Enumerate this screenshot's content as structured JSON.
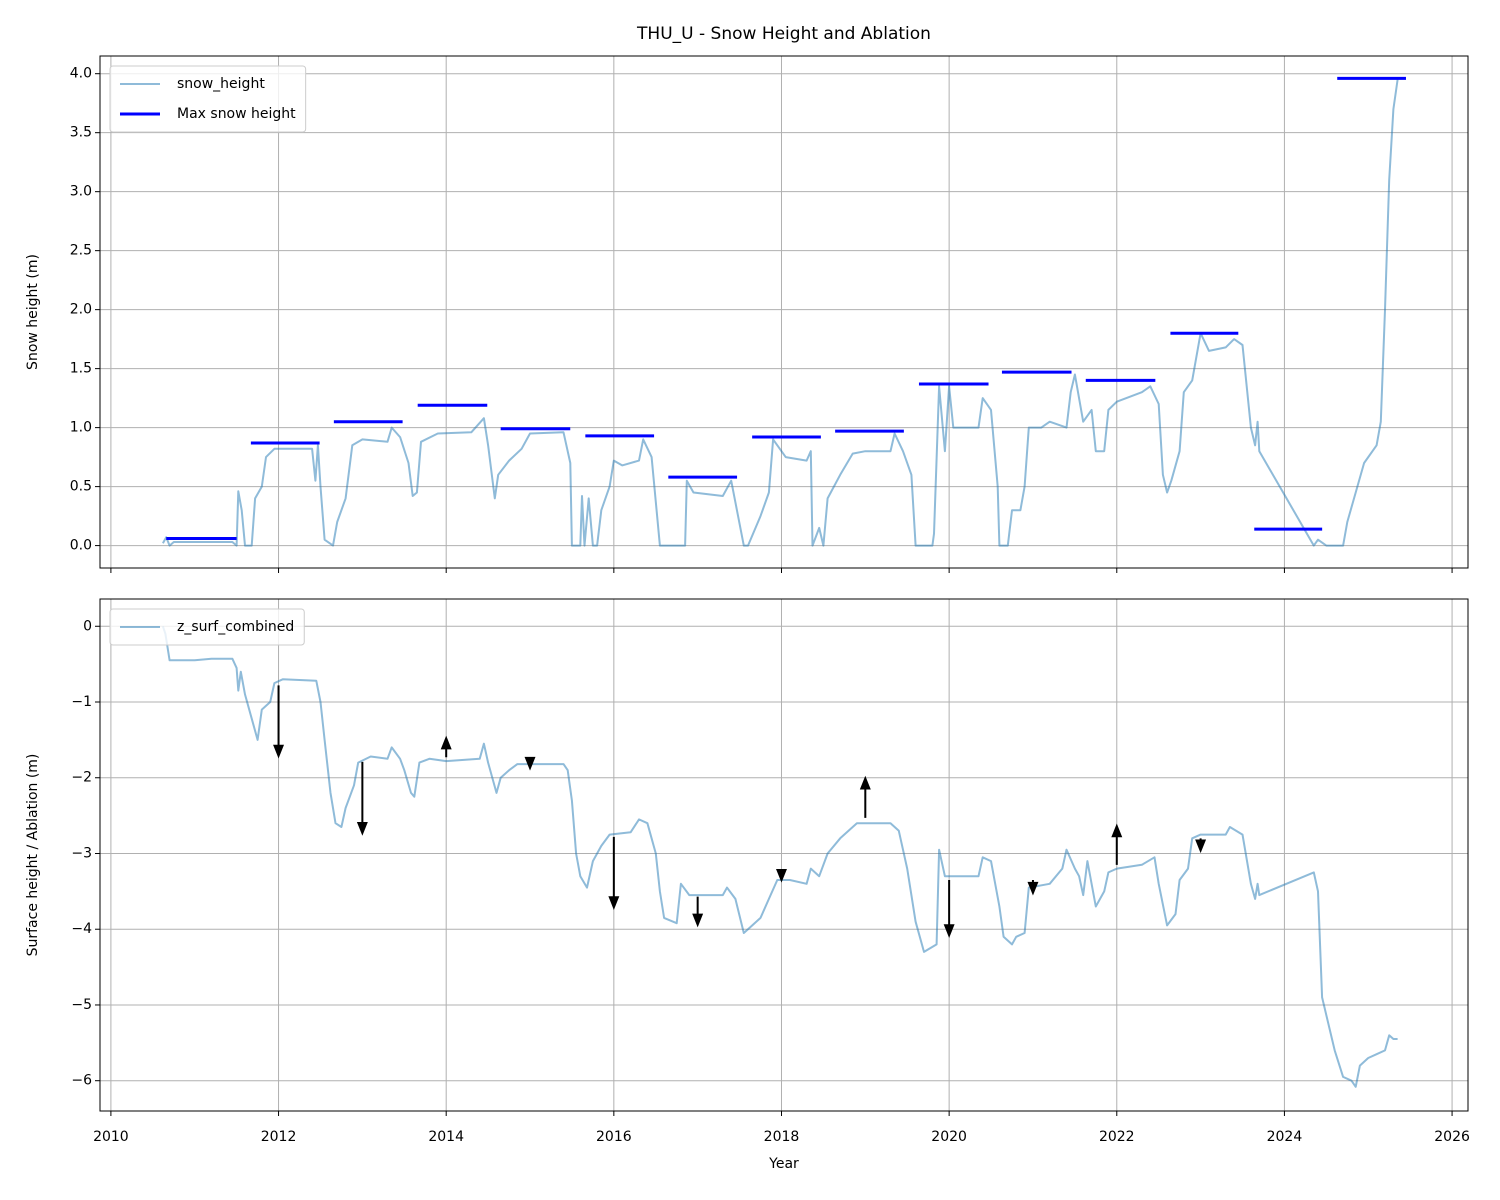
{
  "chart_data": [
    {
      "type": "line",
      "title": "THU_U - Snow Height and Ablation",
      "ylabel": "Snow height (m)",
      "xlim": [
        2009.87,
        2026.19
      ],
      "ylim": [
        -0.19,
        4.15
      ],
      "xticks": [
        2010,
        2012,
        2014,
        2016,
        2018,
        2020,
        2022,
        2024,
        2026
      ],
      "show_xtick_labels": false,
      "yticks": [
        {
          "value": 0,
          "label": "0.0"
        },
        0.5,
        {
          "value": 1,
          "label": "1.0"
        },
        1.5,
        {
          "value": 2,
          "label": "2.0"
        },
        2.5,
        {
          "value": 3,
          "label": "3.0"
        },
        3.5,
        {
          "value": 4,
          "label": "4.0"
        }
      ],
      "grid": true,
      "legend": "upper left",
      "series": [
        {
          "name": "snow_height",
          "color": "#1f77b4",
          "alpha": 0.5,
          "x": [
            2010.62,
            2010.66,
            2010.7,
            2010.75,
            2011.45,
            2011.5,
            2011.52,
            2011.56,
            2011.6,
            2011.68,
            2011.72,
            2011.8,
            2011.85,
            2011.95,
            2012.4,
            2012.44,
            2012.47,
            2012.5,
            2012.55,
            2012.65,
            2012.7,
            2012.8,
            2012.88,
            2013.0,
            2013.3,
            2013.35,
            2013.45,
            2013.55,
            2013.6,
            2013.65,
            2013.7,
            2013.9,
            2014.3,
            2014.45,
            2014.5,
            2014.58,
            2014.62,
            2014.75,
            2014.9,
            2015.0,
            2015.4,
            2015.48,
            2015.5,
            2015.6,
            2015.62,
            2015.65,
            2015.7,
            2015.75,
            2015.8,
            2015.85,
            2015.95,
            2016.0,
            2016.1,
            2016.3,
            2016.35,
            2016.45,
            2016.55,
            2016.85,
            2016.87,
            2016.95,
            2017.3,
            2017.4,
            2017.55,
            2017.6,
            2017.75,
            2017.85,
            2017.9,
            2018.05,
            2018.3,
            2018.35,
            2018.37,
            2018.45,
            2018.5,
            2018.55,
            2018.7,
            2018.85,
            2019.0,
            2019.3,
            2019.35,
            2019.45,
            2019.55,
            2019.6,
            2019.8,
            2019.82,
            2019.88,
            2019.95,
            2020.0,
            2020.05,
            2020.35,
            2020.4,
            2020.5,
            2020.58,
            2020.6,
            2020.7,
            2020.75,
            2020.85,
            2020.9,
            2020.95,
            2021.1,
            2021.2,
            2021.4,
            2021.45,
            2021.5,
            2021.6,
            2021.7,
            2021.75,
            2021.85,
            2021.9,
            2022.0,
            2022.3,
            2022.4,
            2022.5,
            2022.55,
            2022.6,
            2022.65,
            2022.75,
            2022.8,
            2022.9,
            2022.95,
            2023.0,
            2023.1,
            2023.3,
            2023.4,
            2023.5,
            2023.6,
            2023.65,
            2023.68,
            2023.7,
            2024.35,
            2024.4,
            2024.5,
            2024.7,
            2024.75,
            2024.85,
            2024.95,
            2025.1,
            2025.15,
            2025.2,
            2025.25,
            2025.3,
            2025.35
          ],
          "values": [
            0.02,
            0.07,
            0.0,
            0.03,
            0.03,
            0.0,
            0.46,
            0.3,
            0.0,
            0.0,
            0.4,
            0.5,
            0.75,
            0.82,
            0.82,
            0.55,
            0.85,
            0.5,
            0.05,
            0.0,
            0.2,
            0.4,
            0.85,
            0.9,
            0.88,
            1.0,
            0.92,
            0.7,
            0.42,
            0.45,
            0.88,
            0.95,
            0.96,
            1.08,
            0.85,
            0.4,
            0.6,
            0.72,
            0.82,
            0.95,
            0.96,
            0.7,
            0.0,
            0.0,
            0.42,
            0.0,
            0.4,
            0.0,
            0.0,
            0.3,
            0.5,
            0.72,
            0.68,
            0.72,
            0.9,
            0.75,
            0.0,
            0.0,
            0.55,
            0.45,
            0.42,
            0.55,
            0.0,
            0.0,
            0.25,
            0.45,
            0.9,
            0.75,
            0.72,
            0.8,
            0.0,
            0.15,
            0.0,
            0.4,
            0.6,
            0.78,
            0.8,
            0.8,
            0.95,
            0.8,
            0.6,
            0.0,
            0.0,
            0.1,
            1.35,
            0.8,
            1.35,
            1.0,
            1.0,
            1.25,
            1.15,
            0.5,
            0.0,
            0.0,
            0.3,
            0.3,
            0.5,
            1.0,
            1.0,
            1.05,
            1.0,
            1.3,
            1.45,
            1.05,
            1.15,
            0.8,
            0.8,
            1.15,
            1.22,
            1.3,
            1.35,
            1.2,
            0.6,
            0.45,
            0.55,
            0.8,
            1.3,
            1.4,
            1.6,
            1.8,
            1.65,
            1.68,
            1.75,
            1.7,
            1.0,
            0.85,
            1.05,
            0.8,
            0.0,
            0.05,
            0.0,
            0.0,
            0.2,
            0.45,
            0.7,
            0.85,
            1.05,
            2.0,
            3.1,
            3.7,
            3.95
          ]
        },
        {
          "name": "Max snow height",
          "color": "#0000ff",
          "x_start": [
            2010.66,
            2011.67,
            2012.66,
            2013.66,
            2014.65,
            2015.66,
            2016.65,
            2017.65,
            2018.64,
            2019.64,
            2020.63,
            2021.63,
            2022.64,
            2023.64,
            2024.63
          ],
          "x_end": [
            2011.5,
            2012.49,
            2013.48,
            2014.49,
            2015.48,
            2016.48,
            2017.47,
            2018.47,
            2019.46,
            2020.47,
            2021.46,
            2022.46,
            2023.45,
            2024.45,
            2025.45
          ],
          "values": [
            0.06,
            0.87,
            1.05,
            1.19,
            0.99,
            0.93,
            0.58,
            0.92,
            0.97,
            1.37,
            1.47,
            1.4,
            1.8,
            0.14,
            3.96
          ]
        }
      ]
    },
    {
      "type": "line",
      "ylabel": "Surface height / Ablation (m)",
      "xlabel": "Year",
      "xlim": [
        2009.87,
        2026.19
      ],
      "ylim": [
        -6.4,
        0.36
      ],
      "xticks": [
        2010,
        2012,
        2014,
        2016,
        2018,
        2020,
        2022,
        2024,
        2026
      ],
      "show_xtick_labels": true,
      "yticks": [
        0,
        {
          "value": -1,
          "label": "−1"
        },
        {
          "value": -2,
          "label": "−2"
        },
        {
          "value": -3,
          "label": "−3"
        },
        {
          "value": -4,
          "label": "−4"
        },
        {
          "value": -5,
          "label": "−5"
        },
        {
          "value": -6,
          "label": "−6"
        }
      ],
      "grid": true,
      "legend": "upper left",
      "series": [
        {
          "name": "z_surf_combined",
          "color": "#1f77b4",
          "alpha": 0.5,
          "x": [
            2010.62,
            2010.65,
            2010.7,
            2011.0,
            2011.2,
            2011.45,
            2011.5,
            2011.52,
            2011.55,
            2011.6,
            2011.7,
            2011.75,
            2011.8,
            2011.9,
            2011.95,
            2012.05,
            2012.45,
            2012.5,
            2012.55,
            2012.62,
            2012.68,
            2012.75,
            2012.8,
            2012.9,
            2012.95,
            2013.1,
            2013.3,
            2013.35,
            2013.45,
            2013.5,
            2013.58,
            2013.62,
            2013.68,
            2013.8,
            2014.0,
            2014.4,
            2014.45,
            2014.5,
            2014.6,
            2014.65,
            2014.75,
            2014.85,
            2015.0,
            2015.4,
            2015.45,
            2015.5,
            2015.55,
            2015.6,
            2015.68,
            2015.75,
            2015.85,
            2015.95,
            2016.2,
            2016.3,
            2016.4,
            2016.5,
            2016.55,
            2016.6,
            2016.75,
            2016.8,
            2016.9,
            2017.3,
            2017.35,
            2017.45,
            2017.55,
            2017.6,
            2017.75,
            2017.85,
            2017.95,
            2018.1,
            2018.3,
            2018.35,
            2018.45,
            2018.55,
            2018.7,
            2018.85,
            2018.9,
            2019.3,
            2019.4,
            2019.5,
            2019.6,
            2019.7,
            2019.85,
            2019.88,
            2019.95,
            2020.35,
            2020.4,
            2020.5,
            2020.6,
            2020.65,
            2020.75,
            2020.8,
            2020.9,
            2020.95,
            2021.2,
            2021.35,
            2021.4,
            2021.5,
            2021.55,
            2021.6,
            2021.65,
            2021.75,
            2021.85,
            2021.9,
            2022.0,
            2022.3,
            2022.45,
            2022.5,
            2022.6,
            2022.7,
            2022.75,
            2022.85,
            2022.9,
            2023.0,
            2023.3,
            2023.35,
            2023.5,
            2023.6,
            2023.65,
            2023.68,
            2023.7,
            2024.35,
            2024.4,
            2024.45,
            2024.6,
            2024.7,
            2024.8,
            2024.85,
            2024.9,
            2025.0,
            2025.1,
            2025.2,
            2025.25,
            2025.3,
            2025.35
          ],
          "values": [
            0,
            -0.1,
            -0.45,
            -0.45,
            -0.43,
            -0.43,
            -0.55,
            -0.85,
            -0.6,
            -0.9,
            -1.3,
            -1.5,
            -1.1,
            -1.0,
            -0.75,
            -0.7,
            -0.72,
            -1.0,
            -1.5,
            -2.2,
            -2.6,
            -2.65,
            -2.4,
            -2.1,
            -1.8,
            -1.72,
            -1.75,
            -1.6,
            -1.75,
            -1.9,
            -2.2,
            -2.25,
            -1.8,
            -1.75,
            -1.78,
            -1.75,
            -1.55,
            -1.8,
            -2.2,
            -2.0,
            -1.9,
            -1.82,
            -1.82,
            -1.82,
            -1.9,
            -2.3,
            -3.0,
            -3.3,
            -3.45,
            -3.1,
            -2.9,
            -2.75,
            -2.72,
            -2.55,
            -2.6,
            -3.0,
            -3.5,
            -3.85,
            -3.92,
            -3.4,
            -3.55,
            -3.55,
            -3.45,
            -3.6,
            -4.05,
            -4.0,
            -3.85,
            -3.6,
            -3.35,
            -3.35,
            -3.4,
            -3.2,
            -3.3,
            -3.0,
            -2.8,
            -2.65,
            -2.6,
            -2.6,
            -2.7,
            -3.2,
            -3.9,
            -4.3,
            -4.2,
            -2.95,
            -3.3,
            -3.3,
            -3.05,
            -3.1,
            -3.7,
            -4.1,
            -4.2,
            -4.1,
            -4.05,
            -3.45,
            -3.4,
            -3.2,
            -2.95,
            -3.2,
            -3.3,
            -3.55,
            -3.1,
            -3.7,
            -3.5,
            -3.25,
            -3.2,
            -3.15,
            -3.05,
            -3.4,
            -3.95,
            -3.8,
            -3.35,
            -3.2,
            -2.8,
            -2.75,
            -2.75,
            -2.65,
            -2.75,
            -3.4,
            -3.6,
            -3.4,
            -3.55,
            -3.25,
            -3.5,
            -4.9,
            -5.6,
            -5.95,
            -6.0,
            -6.08,
            -5.8,
            -5.7,
            -5.65,
            -5.6,
            -5.4,
            -5.45,
            -5.45
          ]
        }
      ],
      "arrows": {
        "color": "#000000",
        "x": [
          2012,
          2013,
          2014,
          2015,
          2016,
          2017,
          2018,
          2019,
          2020,
          2021,
          2022,
          2023
        ],
        "y_start": [
          -0.78,
          -1.79,
          -1.73,
          -1.73,
          -2.78,
          -3.57,
          -3.22,
          -2.53,
          -3.35,
          -3.35,
          -3.15,
          -2.8
        ],
        "y_end": [
          -1.71,
          -2.73,
          -1.48,
          -1.87,
          -3.71,
          -3.94,
          -3.35,
          -2.01,
          -4.08,
          -3.52,
          -2.64,
          -2.96
        ]
      }
    }
  ]
}
